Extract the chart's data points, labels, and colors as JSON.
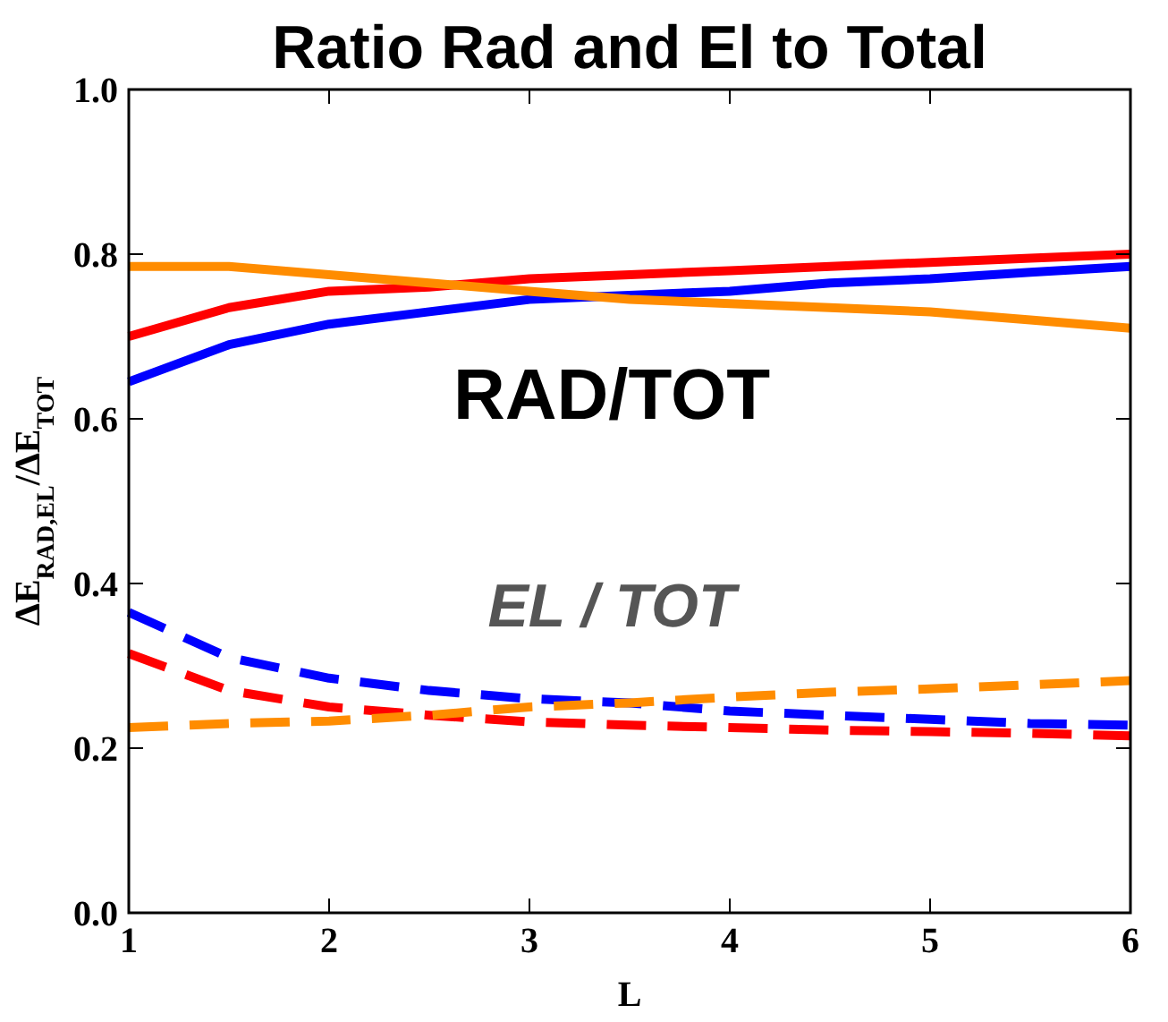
{
  "chart_data": {
    "type": "line",
    "title": "Ratio Rad and El to Total",
    "xlabel": "L",
    "ylabel": "ΔE$_{RAD,EL}$/ΔE$_{TOT}$",
    "x": [
      1,
      1.5,
      2,
      2.5,
      3,
      3.5,
      4,
      4.5,
      5,
      5.5,
      6
    ],
    "xlim": [
      1,
      6
    ],
    "xticks": [
      1,
      2,
      3,
      4,
      5,
      6
    ],
    "ylim": [
      0,
      1
    ],
    "yticks": [
      {
        "value": 0,
        "label": "0.0"
      },
      {
        "value": 0.2,
        "label": "0.2"
      },
      {
        "value": 0.4,
        "label": "0.4"
      },
      {
        "value": 0.6,
        "label": "0.6"
      },
      {
        "value": 0.8,
        "label": "0.8"
      },
      {
        "value": 1,
        "label": "1.0"
      }
    ],
    "series": [
      {
        "color": "#ff0000",
        "line_style": "solid",
        "values": [
          0.7,
          0.735,
          0.755,
          0.76,
          0.77,
          0.775,
          0.78,
          0.785,
          0.79,
          0.795,
          0.8
        ]
      },
      {
        "color": "#0000ff",
        "line_style": "solid",
        "values": [
          0.645,
          0.69,
          0.715,
          0.73,
          0.745,
          0.75,
          0.755,
          0.765,
          0.77,
          0.778,
          0.785
        ]
      },
      {
        "color": "#ff8c00",
        "line_style": "solid",
        "values": [
          0.785,
          0.785,
          0.775,
          0.765,
          0.755,
          0.745,
          0.74,
          0.735,
          0.73,
          0.72,
          0.71
        ]
      },
      {
        "color": "#0000ff",
        "line_style": "dashed",
        "values": [
          0.365,
          0.31,
          0.285,
          0.27,
          0.26,
          0.255,
          0.245,
          0.24,
          0.235,
          0.23,
          0.228
        ]
      },
      {
        "color": "#ff0000",
        "line_style": "dashed",
        "values": [
          0.315,
          0.27,
          0.25,
          0.24,
          0.232,
          0.228,
          0.225,
          0.222,
          0.22,
          0.218,
          0.215
        ]
      },
      {
        "color": "#ff8c00",
        "line_style": "dashed",
        "values": [
          0.225,
          0.23,
          0.233,
          0.24,
          0.25,
          0.255,
          0.262,
          0.268,
          0.272,
          0.277,
          0.282
        ]
      }
    ],
    "annotations": [
      "RAD/TOT",
      "EL / TOT"
    ],
    "grid": false,
    "marker": "none"
  }
}
